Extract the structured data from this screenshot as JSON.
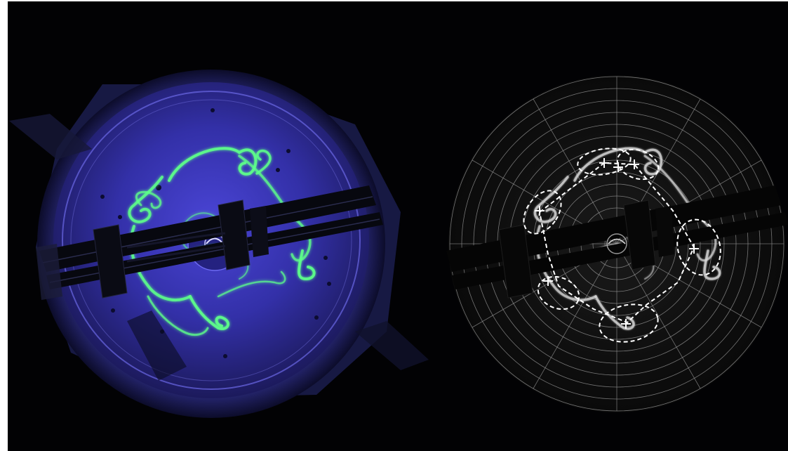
{
  "scene": {
    "background_color": "#020204",
    "left_panel": {
      "content": "uv-fluorescent-dye-vortex-photo",
      "tank_color": "#3a3aa8",
      "dye_color": "#5dff8a"
    },
    "right_panel": {
      "content": "grayscale-vortex-with-polar-grid-overlay",
      "grid_color": "#9a9a9a",
      "annotation_color": "#ffffff",
      "grid_rings": 14,
      "grid_spokes": 12,
      "vortex_markers": 7,
      "annotation_style": "dashed-ellipses-and-path"
    }
  }
}
